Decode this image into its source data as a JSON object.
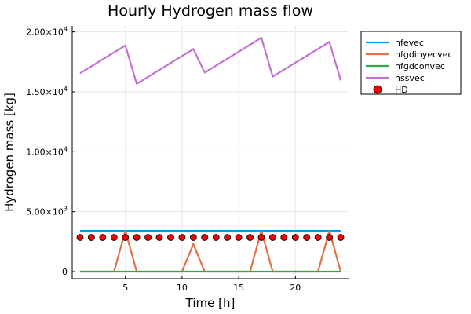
{
  "chart_data": {
    "type": "line",
    "title": "Hourly Hydrogen mass flow",
    "xlabel": "Time [h]",
    "ylabel": "Hydrogen mass [kg]",
    "xlim": [
      0.31,
      24.69
    ],
    "ylim": [
      -590,
      20500
    ],
    "x_ticks": [
      {
        "value": 5,
        "label": "5"
      },
      {
        "value": 10,
        "label": "10"
      },
      {
        "value": 15,
        "label": "15"
      },
      {
        "value": 20,
        "label": "20"
      }
    ],
    "y_ticks": [
      {
        "value": 0,
        "base": "0",
        "exp": ""
      },
      {
        "value": 5000,
        "base": "5.00×10",
        "exp": "3"
      },
      {
        "value": 10000,
        "base": "1.00×10",
        "exp": "4"
      },
      {
        "value": 15000,
        "base": "1.50×10",
        "exp": "4"
      },
      {
        "value": 20000,
        "base": "2.00×10",
        "exp": "4"
      }
    ],
    "grid": true,
    "legend_position": "top-right outside",
    "x": [
      1,
      2,
      3,
      4,
      5,
      6,
      7,
      8,
      9,
      10,
      11,
      12,
      13,
      14,
      15,
      16,
      17,
      18,
      19,
      20,
      21,
      22,
      23,
      24
    ],
    "series": [
      {
        "name": "hfevec",
        "kind": "line",
        "color": "#009af9",
        "values": [
          3400,
          3400,
          3400,
          3400,
          3400,
          3400,
          3400,
          3400,
          3400,
          3400,
          3400,
          3400,
          3400,
          3400,
          3400,
          3400,
          3400,
          3400,
          3400,
          3400,
          3400,
          3400,
          3400,
          3400
        ]
      },
      {
        "name": "hfgdinyecvec",
        "kind": "line",
        "color": "#e26f46",
        "values": [
          0,
          0,
          0,
          0,
          3400,
          0,
          0,
          0,
          0,
          0,
          2300,
          0,
          0,
          0,
          0,
          0,
          3400,
          0,
          0,
          0,
          0,
          0,
          3400,
          0
        ]
      },
      {
        "name": "hfgdconvec",
        "kind": "line",
        "color": "#3da44d",
        "values": [
          0,
          0,
          0,
          0,
          0,
          0,
          0,
          0,
          0,
          0,
          0,
          0,
          0,
          0,
          0,
          0,
          0,
          0,
          0,
          0,
          0,
          0,
          0,
          0
        ]
      },
      {
        "name": "hssvec",
        "kind": "line",
        "color": "#c271d2",
        "values": [
          16550,
          17130,
          17710,
          18290,
          18870,
          15670,
          16250,
          16830,
          17410,
          17990,
          18570,
          16610,
          17190,
          17770,
          18350,
          18930,
          19510,
          16270,
          16850,
          17430,
          18010,
          18590,
          19170,
          15960
        ]
      },
      {
        "name": "HD",
        "kind": "scatter",
        "color": "#ee0000",
        "values": [
          2850,
          2850,
          2850,
          2850,
          2850,
          2850,
          2850,
          2850,
          2850,
          2850,
          2850,
          2850,
          2850,
          2850,
          2850,
          2850,
          2850,
          2850,
          2850,
          2850,
          2850,
          2850,
          2850,
          2850
        ]
      }
    ]
  }
}
